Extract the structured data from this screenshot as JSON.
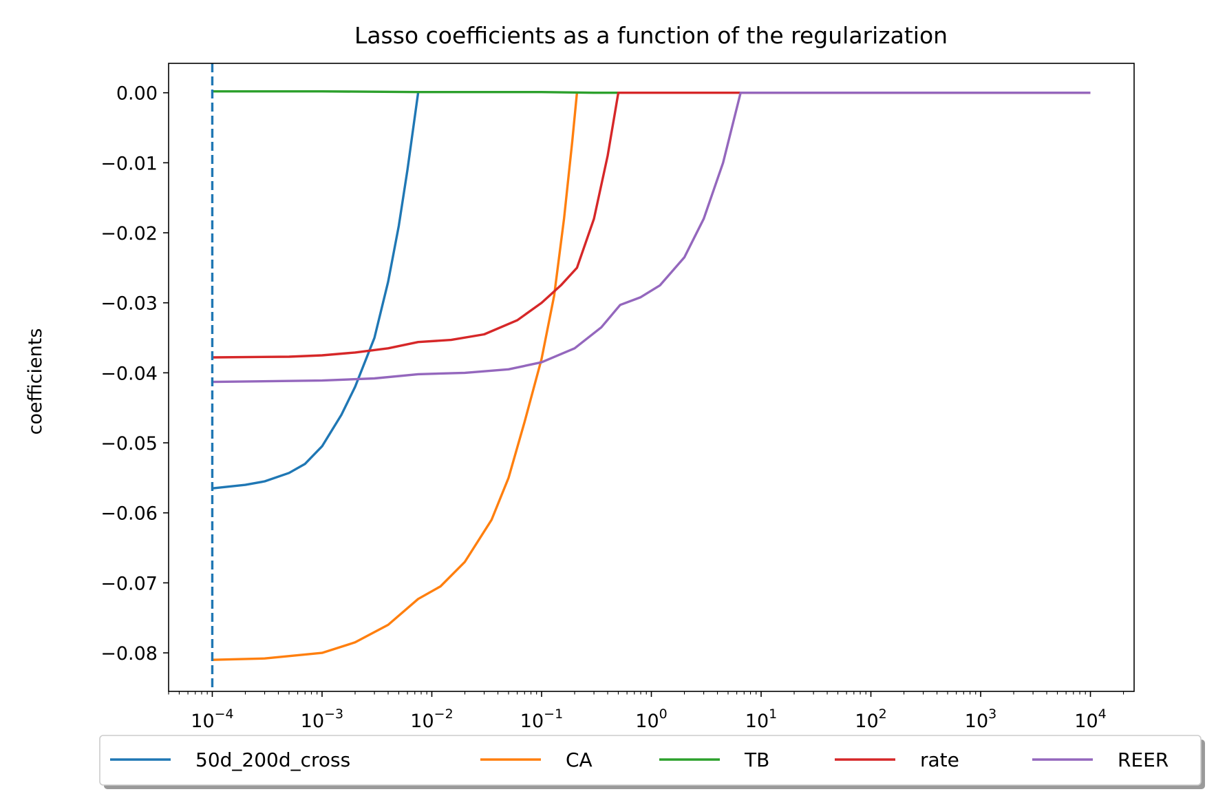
{
  "chart_data": {
    "type": "line",
    "title": "Lasso coefficients as a function of the regularization",
    "xlabel": "",
    "ylabel": "coefficients",
    "xscale": "log",
    "xlim": [
      4e-05,
      25000
    ],
    "ylim": [
      -0.0855,
      0.0042
    ],
    "yticks": [
      0.0,
      -0.01,
      -0.02,
      -0.03,
      -0.04,
      -0.05,
      -0.06,
      -0.07,
      -0.08
    ],
    "ytick_labels": [
      "0.00",
      "−0.01",
      "−0.02",
      "−0.03",
      "−0.04",
      "−0.05",
      "−0.06",
      "−0.07",
      "−0.08"
    ],
    "xticks": [
      {
        "value": 0.0001,
        "base": "10",
        "exp": "−4"
      },
      {
        "value": 0.001,
        "base": "10",
        "exp": "−3"
      },
      {
        "value": 0.01,
        "base": "10",
        "exp": "−2"
      },
      {
        "value": 0.1,
        "base": "10",
        "exp": "−1"
      },
      {
        "value": 1,
        "base": "10",
        "exp": "0"
      },
      {
        "value": 10,
        "base": "10",
        "exp": "1"
      },
      {
        "value": 100,
        "base": "10",
        "exp": "2"
      },
      {
        "value": 1000,
        "base": "10",
        "exp": "3"
      },
      {
        "value": 10000,
        "base": "10",
        "exp": "4"
      }
    ],
    "grid": false,
    "legend_position": "bottom-outside",
    "vline": {
      "x": 0.0001,
      "color": "#1f77b4",
      "style": "dashed"
    },
    "series": [
      {
        "name": "50d_200d_cross",
        "color": "#1f77b4",
        "points": [
          [
            0.0001,
            -0.0565
          ],
          [
            0.0002,
            -0.056
          ],
          [
            0.0003,
            -0.0555
          ],
          [
            0.0005,
            -0.0543
          ],
          [
            0.0007,
            -0.053
          ],
          [
            0.001,
            -0.0505
          ],
          [
            0.0015,
            -0.046
          ],
          [
            0.002,
            -0.042
          ],
          [
            0.003,
            -0.035
          ],
          [
            0.004,
            -0.027
          ],
          [
            0.005,
            -0.019
          ],
          [
            0.006,
            -0.011
          ],
          [
            0.0075,
            0.0
          ]
        ]
      },
      {
        "name": "CA",
        "color": "#ff7f0e",
        "points": [
          [
            0.0001,
            -0.081
          ],
          [
            0.0003,
            -0.0808
          ],
          [
            0.001,
            -0.08
          ],
          [
            0.002,
            -0.0785
          ],
          [
            0.004,
            -0.076
          ],
          [
            0.0075,
            -0.0723
          ],
          [
            0.012,
            -0.0705
          ],
          [
            0.02,
            -0.067
          ],
          [
            0.035,
            -0.061
          ],
          [
            0.05,
            -0.055
          ],
          [
            0.07,
            -0.047
          ],
          [
            0.1,
            -0.038
          ],
          [
            0.13,
            -0.029
          ],
          [
            0.16,
            -0.018
          ],
          [
            0.19,
            -0.007
          ],
          [
            0.21,
            0.0
          ]
        ]
      },
      {
        "name": "TB",
        "color": "#2ca02c",
        "points": [
          [
            0.0001,
            0.0002
          ],
          [
            0.001,
            0.0002
          ],
          [
            0.0075,
            0.0001
          ],
          [
            0.1,
            0.0001
          ],
          [
            0.3,
            0.0
          ],
          [
            0.52,
            0.0
          ]
        ]
      },
      {
        "name": "rate",
        "color": "#d62728",
        "points": [
          [
            0.0001,
            -0.0378
          ],
          [
            0.0005,
            -0.0377
          ],
          [
            0.001,
            -0.0375
          ],
          [
            0.002,
            -0.0371
          ],
          [
            0.004,
            -0.0365
          ],
          [
            0.0075,
            -0.0356
          ],
          [
            0.015,
            -0.0353
          ],
          [
            0.03,
            -0.0345
          ],
          [
            0.06,
            -0.0325
          ],
          [
            0.1,
            -0.03
          ],
          [
            0.15,
            -0.0275
          ],
          [
            0.21,
            -0.025
          ],
          [
            0.3,
            -0.018
          ],
          [
            0.4,
            -0.009
          ],
          [
            0.5,
            0.0
          ],
          [
            10000,
            0.0
          ]
        ]
      },
      {
        "name": "REER",
        "color": "#9467bd",
        "points": [
          [
            0.0001,
            -0.0413
          ],
          [
            0.001,
            -0.0411
          ],
          [
            0.003,
            -0.0408
          ],
          [
            0.0075,
            -0.0402
          ],
          [
            0.02,
            -0.04
          ],
          [
            0.05,
            -0.0395
          ],
          [
            0.1,
            -0.0385
          ],
          [
            0.2,
            -0.0365
          ],
          [
            0.35,
            -0.0335
          ],
          [
            0.52,
            -0.0303
          ],
          [
            0.8,
            -0.0292
          ],
          [
            1.2,
            -0.0275
          ],
          [
            2,
            -0.0235
          ],
          [
            3,
            -0.018
          ],
          [
            4.5,
            -0.01
          ],
          [
            6.5,
            0.0
          ],
          [
            10000,
            0.0
          ]
        ]
      }
    ]
  }
}
